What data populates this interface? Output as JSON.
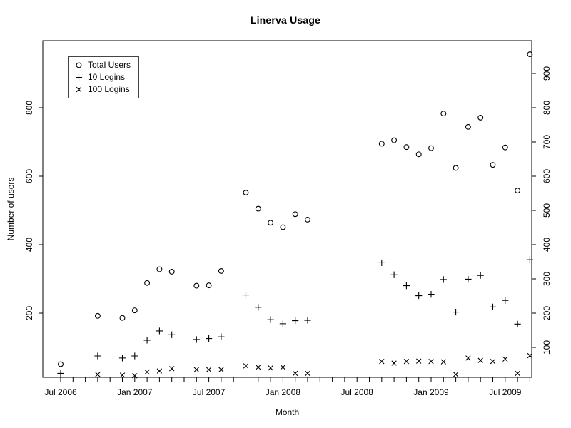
{
  "colors": {
    "foreground": "#000000",
    "background": "#ffffff"
  },
  "chart_data": {
    "type": "scatter",
    "title": "Linerva Usage",
    "xlabel": "Month",
    "ylabel": "Number of users",
    "grid": false,
    "legend": {
      "position": "top-left",
      "items": [
        {
          "label": "Total Users",
          "marker": "circle"
        },
        {
          "label": "10 Logins",
          "marker": "plus"
        },
        {
          "label": "100 Logins",
          "marker": "x"
        }
      ]
    },
    "x_axis": {
      "unit": "month",
      "first_month": "Jul 2006",
      "last_month": "Sep 2009",
      "minor_ticks": "every month",
      "major_tick_labels": [
        "Jul 2006",
        "Jan 2007",
        "Jul 2007",
        "Jan 2008",
        "Jul 2008",
        "Jan 2009",
        "Jul 2009"
      ],
      "major_tick_month_offsets": [
        0,
        6,
        12,
        18,
        24,
        30,
        36
      ]
    },
    "y_axis": {
      "ylim": [
        0,
        1000
      ],
      "left_ticks": [
        200,
        400,
        600,
        800
      ],
      "right_ticks": [
        100,
        200,
        300,
        400,
        500,
        600,
        700,
        800,
        900
      ]
    },
    "months": [
      "Jul 2006",
      "Oct 2006",
      "Dec 2006",
      "Jan 2007",
      "Feb 2007",
      "Mar 2007",
      "Apr 2007",
      "Jun 2007",
      "Jul 2007",
      "Aug 2007",
      "Oct 2007",
      "Nov 2007",
      "Dec 2007",
      "Jan 2008",
      "Feb 2008",
      "Mar 2008",
      "Sep 2008",
      "Oct 2008",
      "Nov 2008",
      "Dec 2008",
      "Jan 2009",
      "Feb 2009",
      "Mar 2009",
      "Apr 2009",
      "May 2009",
      "Jun 2009",
      "Jul 2009",
      "Aug 2009",
      "Sep 2009"
    ],
    "month_offsets": [
      0,
      3,
      5,
      6,
      7,
      8,
      9,
      11,
      12,
      13,
      15,
      16,
      17,
      18,
      19,
      20,
      26,
      27,
      28,
      29,
      30,
      31,
      32,
      33,
      34,
      35,
      36,
      37,
      38
    ],
    "series": [
      {
        "name": "Total Users",
        "marker": "circle",
        "values": [
          51,
          192,
          186,
          208,
          288,
          328,
          321,
          280,
          281,
          323,
          552,
          505,
          464,
          451,
          489,
          473,
          695,
          705,
          685,
          664,
          682,
          783,
          624,
          744,
          771,
          633,
          684,
          558,
          956
        ]
      },
      {
        "name": "10 Logins",
        "marker": "plus",
        "values": [
          24,
          75,
          69,
          75,
          121,
          148,
          137,
          123,
          126,
          131,
          253,
          217,
          181,
          169,
          178,
          179,
          347,
          312,
          280,
          251,
          255,
          298,
          203,
          299,
          310,
          218,
          237,
          168,
          356
        ]
      },
      {
        "name": "100 Logins",
        "marker": "x",
        "values": [
          null,
          21,
          19,
          17,
          28,
          31,
          38,
          35,
          35,
          35,
          46,
          42,
          40,
          42,
          24,
          24,
          59,
          54,
          59,
          60,
          59,
          58,
          21,
          69,
          62,
          59,
          66,
          24,
          76
        ]
      }
    ]
  }
}
